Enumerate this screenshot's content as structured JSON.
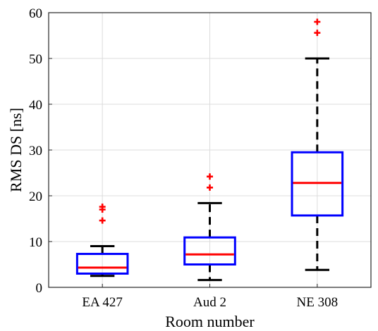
{
  "chart_data": {
    "type": "box",
    "xlabel": "Room number",
    "ylabel": "RMS DS [ns]",
    "ylim": [
      0,
      60
    ],
    "yticks": [
      0,
      10,
      20,
      30,
      40,
      50,
      60
    ],
    "grid": true,
    "categories": [
      "EA 427",
      "Aud 2",
      "NE 308"
    ],
    "boxes": [
      {
        "whisker_low": 2.5,
        "q1": 3.0,
        "median": 4.3,
        "q3": 7.3,
        "whisker_high": 9.0,
        "outliers": [
          14.6,
          17.0,
          17.6
        ]
      },
      {
        "whisker_low": 1.6,
        "q1": 5.0,
        "median": 7.2,
        "q3": 10.9,
        "whisker_high": 18.4,
        "outliers": [
          21.8,
          24.2
        ]
      },
      {
        "whisker_low": 3.8,
        "q1": 15.7,
        "median": 22.8,
        "q3": 29.5,
        "whisker_high": 50.0,
        "outliers": [
          55.6,
          58.0
        ]
      }
    ],
    "colors": {
      "box": "#0000ff",
      "median": "#ff0000",
      "whisker": "#000000",
      "outlier": "#ff0000"
    }
  }
}
